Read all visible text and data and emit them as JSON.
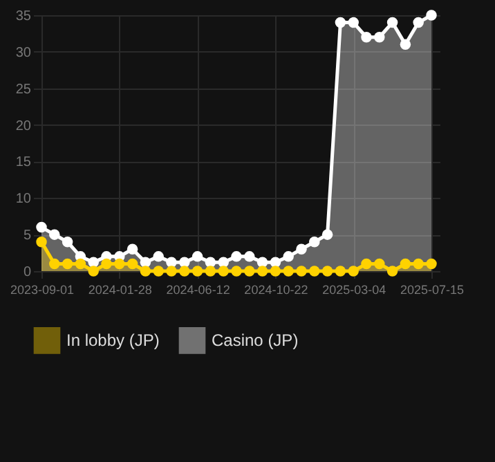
{
  "chart_data": {
    "type": "area",
    "categories": [
      "2023-09-01",
      null,
      null,
      null,
      null,
      null,
      "2024-01-28",
      null,
      null,
      null,
      null,
      null,
      "2024-06-12",
      null,
      null,
      null,
      null,
      null,
      "2024-10-22",
      null,
      null,
      null,
      null,
      null,
      "2025-03-04",
      null,
      null,
      null,
      null,
      null,
      "2025-07-15"
    ],
    "series": [
      {
        "name": "In lobby (JP)",
        "color": "#ffd200",
        "values": [
          4,
          1,
          1,
          1,
          0,
          1,
          1,
          1,
          0,
          0,
          0,
          0,
          0,
          0,
          0,
          0,
          0,
          0,
          0,
          0,
          0,
          0,
          0,
          0,
          0,
          1,
          1,
          0,
          1,
          1,
          1
        ]
      },
      {
        "name": "Casino (JP)",
        "color": "#ffffff",
        "values": [
          6,
          5,
          4,
          2,
          1.2,
          2,
          2,
          3,
          1.2,
          2,
          1.2,
          1.2,
          2,
          1.2,
          1.2,
          2,
          2,
          1.2,
          1.2,
          2,
          3,
          4,
          5,
          34,
          34,
          32,
          32,
          34,
          31,
          34,
          35
        ]
      }
    ],
    "ylim": [
      0,
      35
    ],
    "yticks": [
      0,
      5,
      10,
      15,
      20,
      25,
      30,
      35
    ],
    "grid": true,
    "legend": "bottom",
    "marker": "circle",
    "line_style": "solid"
  }
}
